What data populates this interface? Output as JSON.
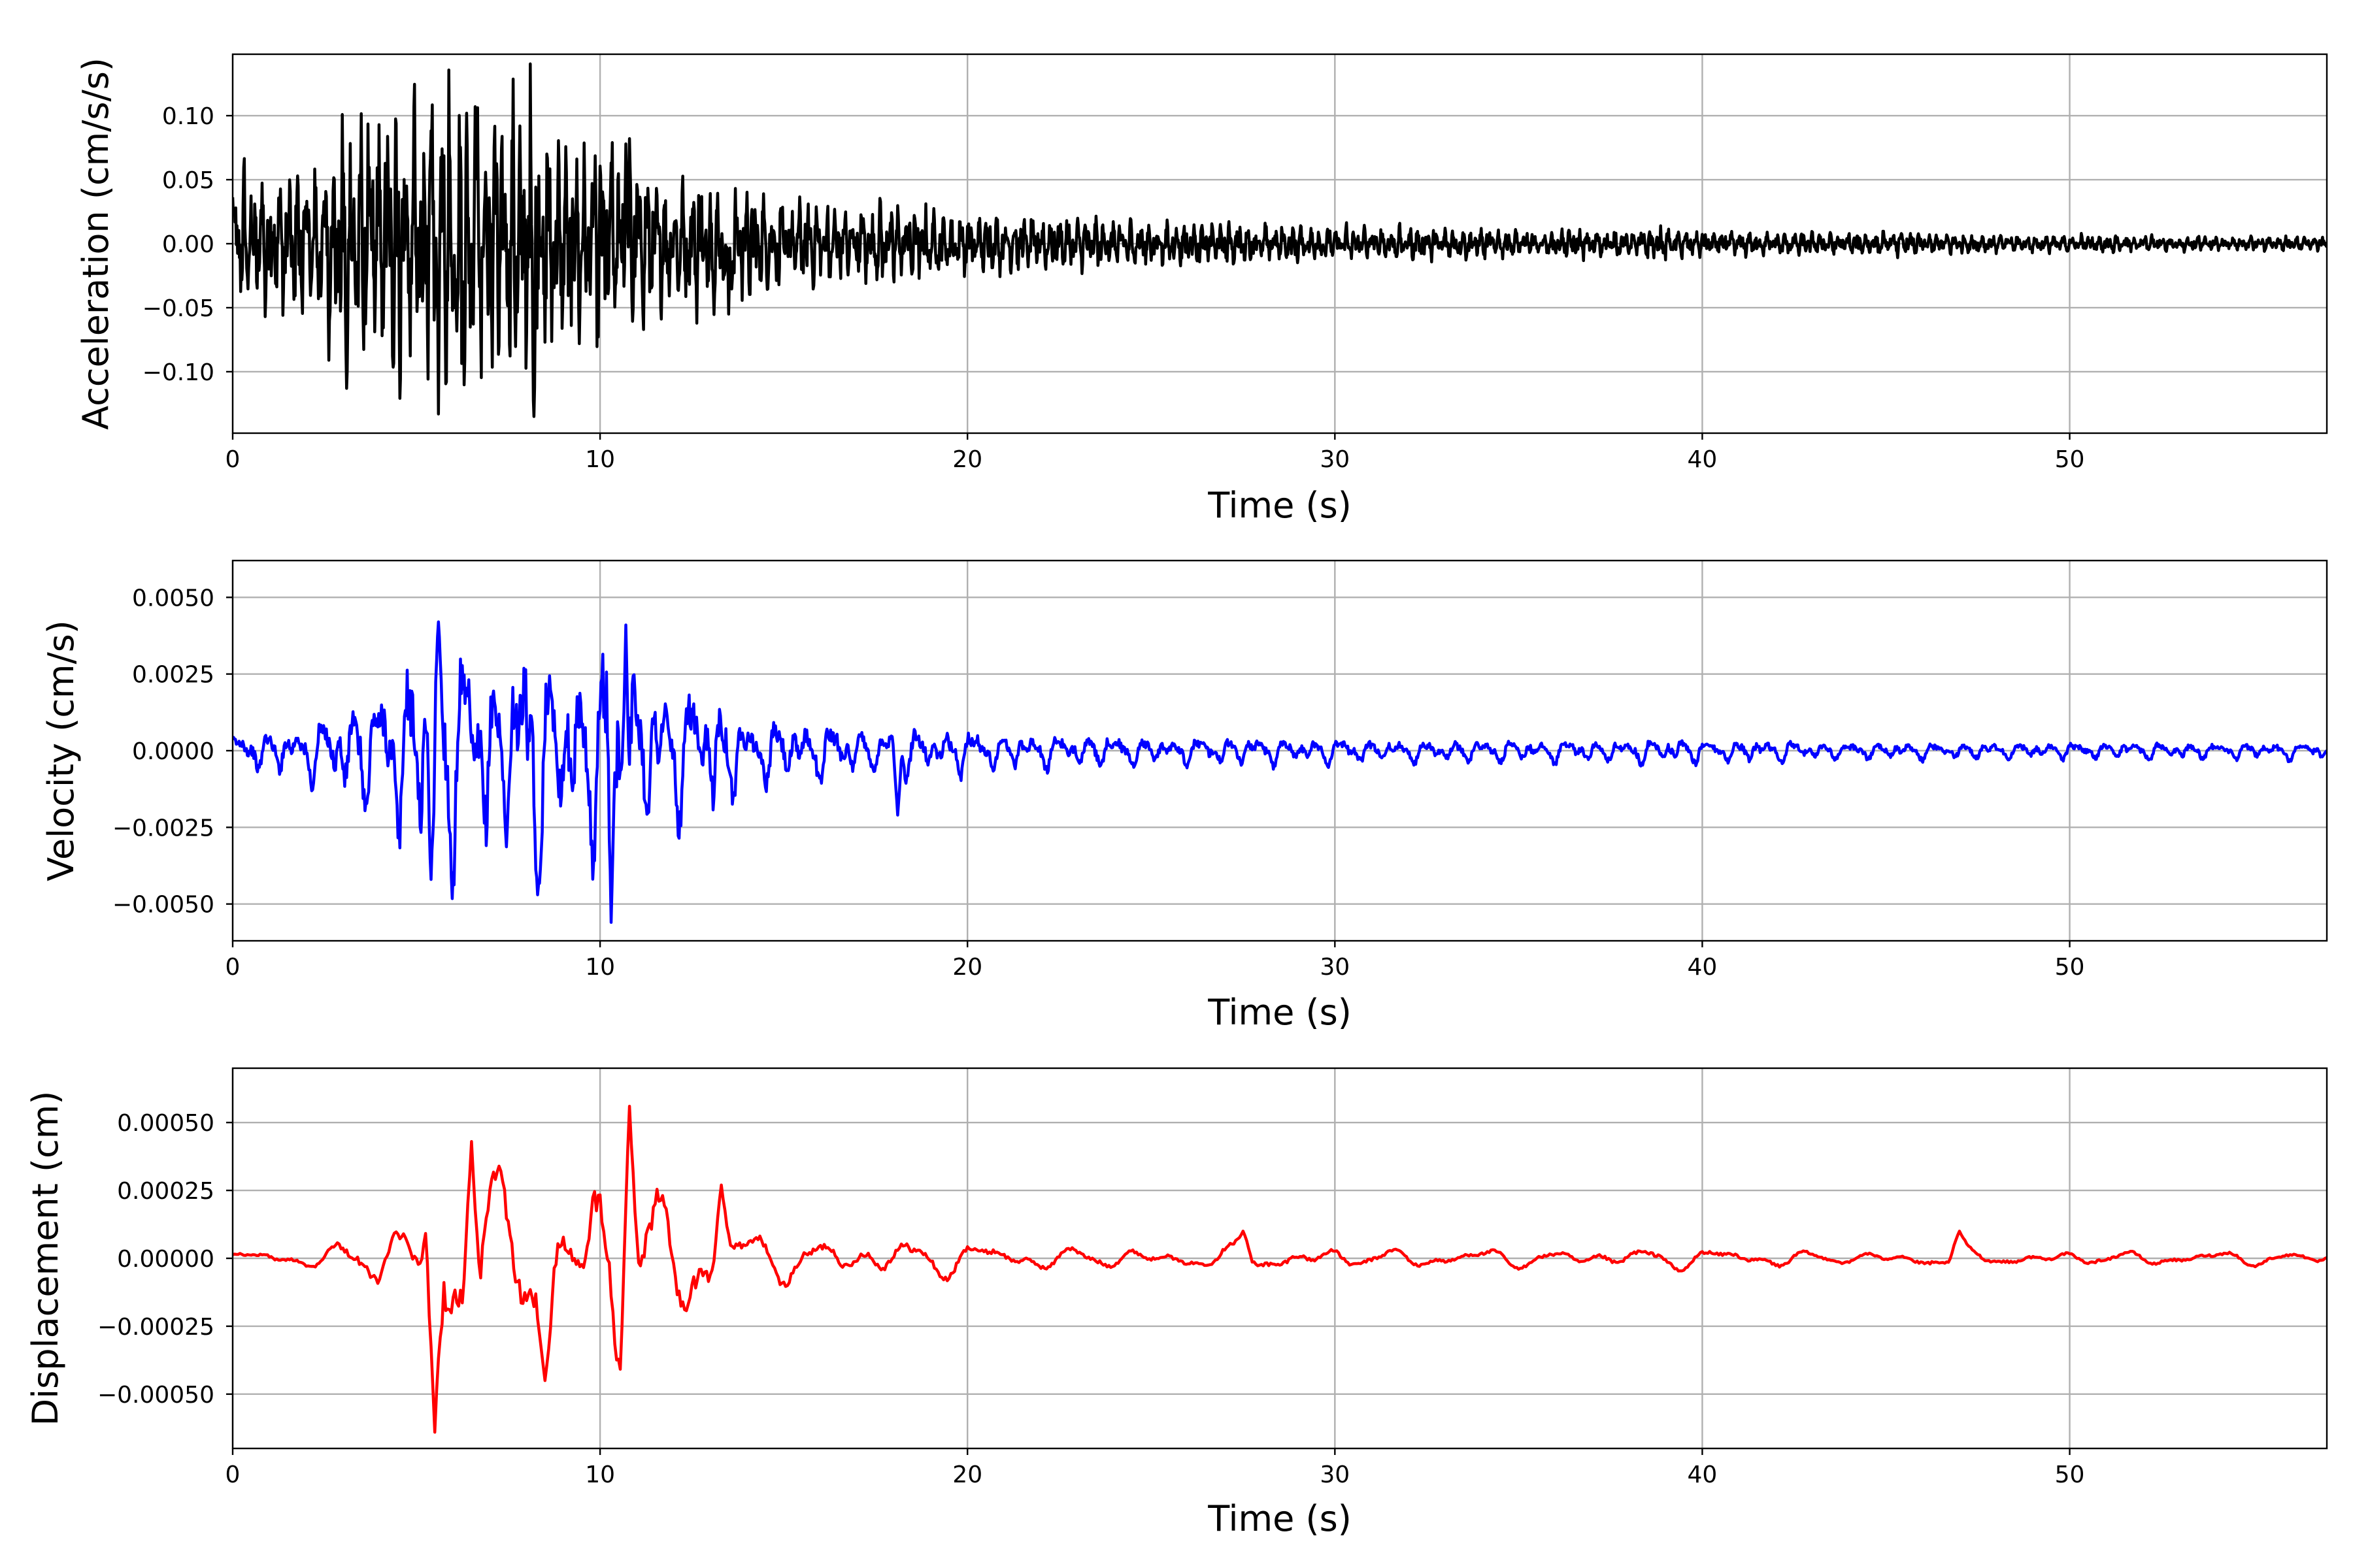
{
  "chart_data": [
    {
      "type": "line",
      "xlabel": "Time (s)",
      "ylabel": "Acceleration (cm/s/s)",
      "xlim": [
        0,
        57
      ],
      "ylim": [
        -0.148,
        0.148
      ],
      "xticks": [
        0,
        10,
        20,
        30,
        40,
        50
      ],
      "xtick_labels": [
        "0",
        "10",
        "20",
        "30",
        "40",
        "50"
      ],
      "yticks": [
        -0.1,
        -0.05,
        0.0,
        0.05,
        0.1
      ],
      "ytick_labels": [
        "−0.10",
        "−0.05",
        "0.00",
        "0.05",
        "0.10"
      ],
      "grid": true,
      "series": [
        {
          "color": "#000000",
          "x": [
            0,
            0.5,
            1,
            1.5,
            2,
            2.5,
            3,
            3.5,
            4,
            4.5,
            5,
            5.5,
            6,
            6.5,
            7,
            7.5,
            8,
            8.5,
            9,
            9.5,
            10,
            10.5,
            11,
            11.5,
            12,
            12.5,
            13,
            13.5,
            14,
            14.5,
            15,
            16,
            17,
            18,
            19,
            20,
            21,
            22,
            23,
            24,
            25,
            26,
            27,
            28,
            29,
            30,
            31,
            32,
            33,
            34,
            35,
            36,
            37,
            38,
            39,
            40,
            41,
            42,
            43,
            44,
            45,
            46,
            47,
            48,
            49,
            50,
            51,
            52,
            53,
            54,
            55,
            56,
            57
          ],
          "envelope": [
            0.055,
            0.05,
            0.055,
            0.06,
            0.065,
            0.07,
            0.085,
            0.09,
            0.1,
            0.11,
            0.115,
            0.12,
            0.118,
            0.1,
            0.105,
            0.085,
            0.13,
            0.09,
            0.07,
            0.07,
            0.07,
            0.08,
            0.06,
            0.05,
            0.045,
            0.045,
            0.05,
            0.045,
            0.04,
            0.035,
            0.032,
            0.03,
            0.028,
            0.03,
            0.025,
            0.022,
            0.02,
            0.02,
            0.018,
            0.017,
            0.016,
            0.015,
            0.015,
            0.014,
            0.013,
            0.013,
            0.012,
            0.012,
            0.011,
            0.011,
            0.01,
            0.01,
            0.01,
            0.009,
            0.012,
            0.009,
            0.009,
            0.008,
            0.008,
            0.008,
            0.009,
            0.007,
            0.007,
            0.007,
            0.006,
            0.006,
            0.006,
            0.006,
            0.005,
            0.006,
            0.005,
            0.005,
            0.005
          ],
          "peaks": [
            {
              "x": 3.1,
              "y": -0.113
            },
            {
              "x": 5.6,
              "y": 0.123
            },
            {
              "x": 5.6,
              "y": -0.133
            },
            {
              "x": 6.6,
              "y": 0.107
            },
            {
              "x": 8.2,
              "y": -0.135
            },
            {
              "x": 10.7,
              "y": 0.078
            },
            {
              "x": 13.5,
              "y": -0.055
            }
          ]
        }
      ]
    },
    {
      "type": "line",
      "xlabel": "Time (s)",
      "ylabel": "Velocity (cm/s)",
      "xlim": [
        0,
        57
      ],
      "ylim": [
        -0.0062,
        0.0062
      ],
      "xticks": [
        0,
        10,
        20,
        30,
        40,
        50
      ],
      "xtick_labels": [
        "0",
        "10",
        "20",
        "30",
        "40",
        "50"
      ],
      "yticks": [
        -0.005,
        -0.0025,
        0.0,
        0.0025,
        0.005
      ],
      "ytick_labels": [
        "−0.0050",
        "−0.0025",
        "0.0000",
        "0.0025",
        "0.0050"
      ],
      "grid": true,
      "series": [
        {
          "color": "#0000ff",
          "x": [
            0,
            0.5,
            1,
            1.5,
            2,
            2.5,
            3,
            3.5,
            4,
            4.5,
            5,
            5.5,
            6,
            6.5,
            7,
            7.5,
            8,
            8.5,
            9,
            9.5,
            10,
            10.5,
            11,
            11.5,
            12,
            12.5,
            13,
            13.5,
            14,
            14.5,
            15,
            16,
            17,
            18,
            19,
            20,
            21,
            22,
            23,
            24,
            25,
            26,
            27,
            28,
            29,
            30,
            31,
            32,
            33,
            34,
            35,
            36,
            37,
            38,
            39,
            40,
            41,
            42,
            43,
            44,
            45,
            46,
            47,
            48,
            49,
            50,
            51,
            52,
            53,
            54,
            55,
            56,
            57
          ],
          "envelope": [
            0.0006,
            0.0007,
            0.0008,
            0.0009,
            0.001,
            0.0012,
            0.0018,
            0.002,
            0.0025,
            0.003,
            0.0035,
            0.004,
            0.004,
            0.0035,
            0.0035,
            0.003,
            0.0045,
            0.0035,
            0.003,
            0.003,
            0.0045,
            0.0042,
            0.003,
            0.0025,
            0.0025,
            0.0025,
            0.0028,
            0.0018,
            0.0012,
            0.0012,
            0.0011,
            0.001,
            0.0009,
            0.001,
            0.0008,
            0.0008,
            0.0007,
            0.0006,
            0.0006,
            0.0006,
            0.0005,
            0.0005,
            0.0005,
            0.0005,
            0.0005,
            0.0005,
            0.0004,
            0.0004,
            0.0004,
            0.0004,
            0.0004,
            0.0004,
            0.0004,
            0.0004,
            0.0005,
            0.0004,
            0.0004,
            0.0004,
            0.0003,
            0.0003,
            0.0003,
            0.0003,
            0.0003,
            0.0003,
            0.0003,
            0.0003,
            0.0003,
            0.0003,
            0.0003,
            0.0003,
            0.0003,
            0.0003,
            0.0003
          ],
          "peaks": [
            {
              "x": 5.6,
              "y": 0.0042
            },
            {
              "x": 5.4,
              "y": -0.0042
            },
            {
              "x": 8.3,
              "y": -0.0047
            },
            {
              "x": 10.3,
              "y": -0.0056
            },
            {
              "x": 10.7,
              "y": 0.0041
            },
            {
              "x": 18.1,
              "y": -0.0021
            }
          ]
        }
      ]
    },
    {
      "type": "line",
      "xlabel": "Time (s)",
      "ylabel": "Displacement (cm)",
      "xlim": [
        0,
        57
      ],
      "ylim": [
        -0.0007,
        0.0007
      ],
      "xticks": [
        0,
        10,
        20,
        30,
        40,
        50
      ],
      "xtick_labels": [
        "0",
        "10",
        "20",
        "30",
        "40",
        "50"
      ],
      "yticks": [
        -0.0005,
        -0.00025,
        0.0,
        0.00025,
        0.0005
      ],
      "ytick_labels": [
        "−0.00050",
        "−0.00025",
        "0.00000",
        "0.00025",
        "0.00050"
      ],
      "grid": true,
      "series": [
        {
          "color": "#ff0000",
          "x": [
            0,
            0.5,
            1,
            1.5,
            2,
            2.5,
            3,
            3.5,
            4,
            4.5,
            5,
            5.5,
            6,
            6.5,
            7,
            7.5,
            8,
            8.5,
            9,
            9.5,
            10,
            10.5,
            11,
            11.5,
            12,
            12.5,
            13,
            13.5,
            14,
            14.5,
            15,
            16,
            17,
            18,
            19,
            20,
            21,
            22,
            23,
            24,
            25,
            26,
            27,
            28,
            29,
            30,
            31,
            32,
            33,
            34,
            35,
            36,
            37,
            38,
            39,
            40,
            41,
            42,
            43,
            44,
            45,
            46,
            47,
            48,
            49,
            50,
            51,
            52,
            53,
            54,
            55,
            56,
            57
          ],
          "envelope": [
            3e-05,
            3e-05,
            4e-05,
            4e-05,
            4e-05,
            5e-05,
            8e-05,
            0.0001,
            0.00015,
            0.00015,
            0.00025,
            0.0006,
            0.00035,
            0.0004,
            0.0003,
            0.0003,
            0.0004,
            0.0004,
            0.0003,
            0.0003,
            0.0004,
            0.00055,
            0.0003,
            0.0003,
            0.00025,
            0.0003,
            0.00025,
            0.00015,
            0.00012,
            0.0001,
            0.0001,
            0.0001,
            9e-05,
            0.0001,
            8e-05,
            7e-05,
            6e-05,
            5e-05,
            5e-05,
            5e-05,
            4e-05,
            4e-05,
            5e-05,
            6e-05,
            5e-05,
            5e-05,
            4e-05,
            4e-05,
            4e-05,
            4e-05,
            4e-05,
            4e-05,
            4e-05,
            5e-05,
            5e-05,
            4e-05,
            4e-05,
            4e-05,
            3e-05,
            3e-05,
            3e-05,
            4e-05,
            4e-05,
            3e-05,
            3e-05,
            3e-05,
            3e-05,
            3e-05,
            3e-05,
            3e-05,
            3e-05,
            3e-05,
            3e-05
          ],
          "peaks": [
            {
              "x": 5.5,
              "y": -0.00064
            },
            {
              "x": 6.5,
              "y": 0.00043
            },
            {
              "x": 8.5,
              "y": -0.00045
            },
            {
              "x": 10.6,
              "y": -0.00044
            },
            {
              "x": 10.8,
              "y": 0.00056
            },
            {
              "x": 13.3,
              "y": 0.00027
            },
            {
              "x": 27.5,
              "y": 0.0001
            },
            {
              "x": 47.0,
              "y": 0.0001
            }
          ]
        }
      ]
    }
  ]
}
